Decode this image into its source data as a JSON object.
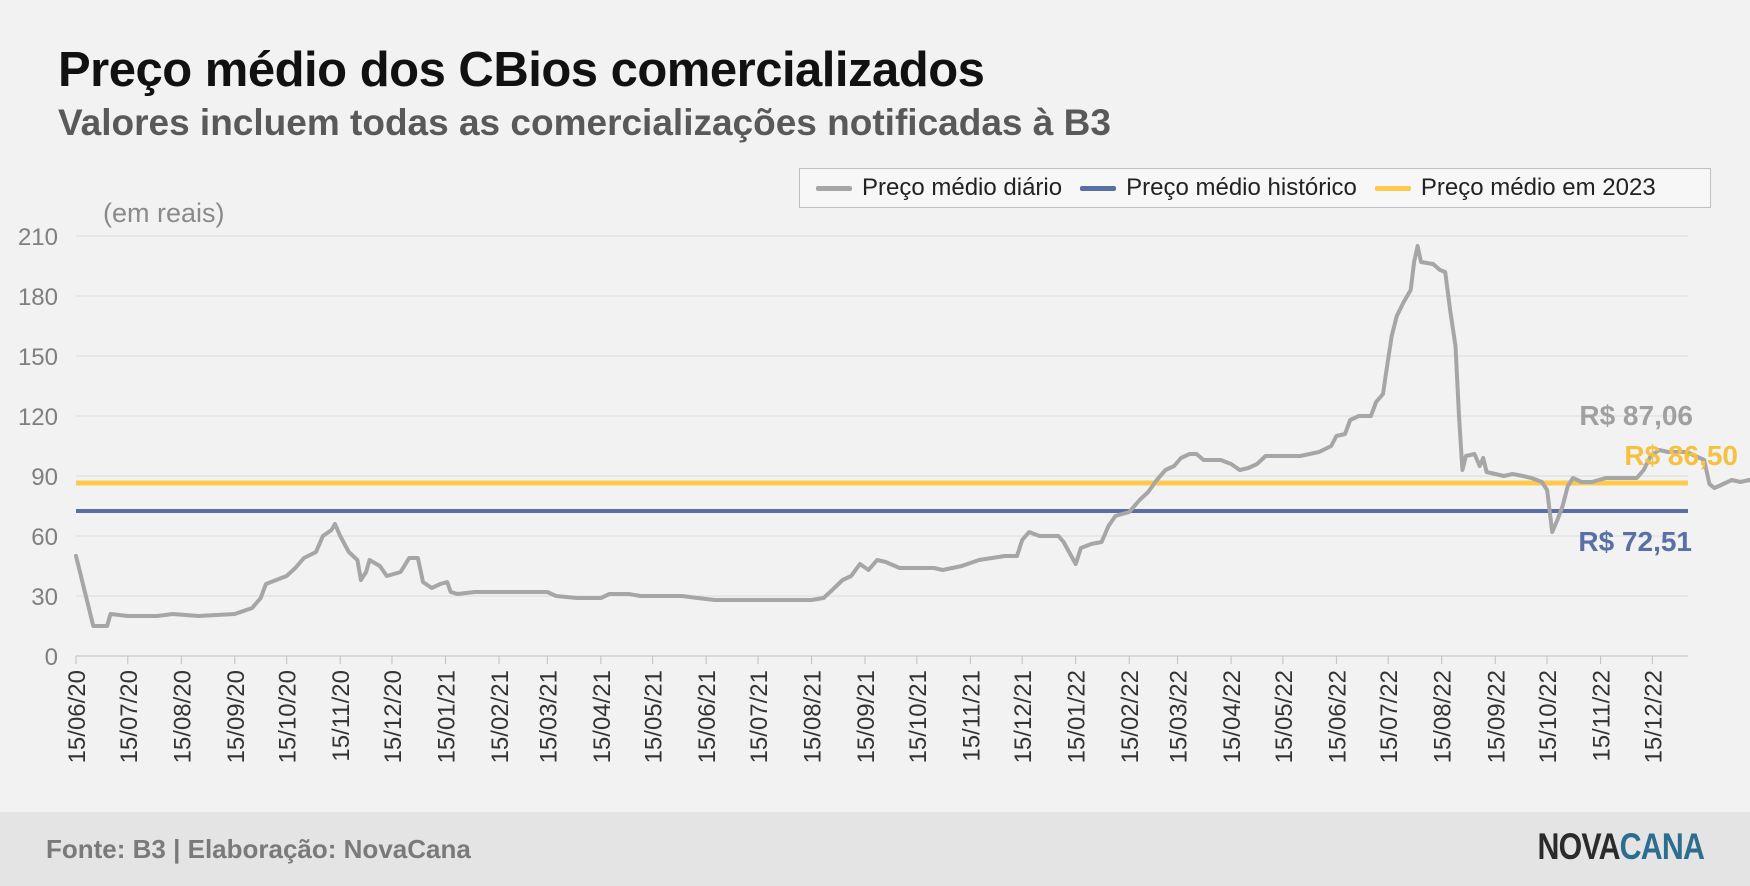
{
  "header": {
    "title": "Preço médio dos CBios comercializados",
    "subtitle": "Valores incluem todas as comercializações notificadas à B3"
  },
  "footer": {
    "source": "Fonte: B3 | Elaboração: NovaCana",
    "logo_part1": "NOVA",
    "logo_part2": "CANA"
  },
  "colors": {
    "daily": "#a6a6a6",
    "historic": "#5a6fa3",
    "year2023": "#ffc94d",
    "grid": "#dcdcdc",
    "axis_text": "#7f7f7f"
  },
  "chart_data": {
    "type": "line",
    "unit_label": "(em reais)",
    "ylim": [
      0,
      210
    ],
    "yticks": [
      0,
      30,
      60,
      90,
      120,
      150,
      180,
      210
    ],
    "x_start": "15/06/20",
    "x_end": "31/12/22",
    "x_tick_labels": [
      "15/06/20",
      "15/07/20",
      "15/08/20",
      "15/09/20",
      "15/10/20",
      "15/11/20",
      "15/12/20",
      "15/01/21",
      "15/02/21",
      "15/03/21",
      "15/04/21",
      "15/05/21",
      "15/06/21",
      "15/07/21",
      "15/08/21",
      "15/09/21",
      "15/10/21",
      "15/11/21",
      "15/12/21",
      "15/01/22",
      "15/02/22",
      "15/03/22",
      "15/04/22",
      "15/05/22",
      "15/06/22",
      "15/07/22",
      "15/08/22",
      "15/09/22",
      "15/10/22",
      "15/11/22",
      "15/12/22"
    ],
    "legend": [
      "Preço médio diário",
      "Preço médio histórico",
      "Preço médio em 2023"
    ],
    "grid": true,
    "legend_position": "top-right",
    "series": [
      {
        "name": "Preço médio diário",
        "points": [
          [
            "15/06/20",
            50
          ],
          [
            "25/06/20",
            15
          ],
          [
            "03/07/20",
            15
          ],
          [
            "05/07/20",
            21
          ],
          [
            "15/07/20",
            20
          ],
          [
            "01/08/20",
            20
          ],
          [
            "10/08/20",
            21
          ],
          [
            "25/08/20",
            20
          ],
          [
            "15/09/20",
            21
          ],
          [
            "25/09/20",
            24
          ],
          [
            "30/09/20",
            29
          ],
          [
            "03/10/20",
            36
          ],
          [
            "15/10/20",
            40
          ],
          [
            "20/10/20",
            44
          ],
          [
            "25/10/20",
            49
          ],
          [
            "01/11/20",
            52
          ],
          [
            "05/11/20",
            60
          ],
          [
            "10/11/20",
            63
          ],
          [
            "12/11/20",
            66
          ],
          [
            "15/11/20",
            60
          ],
          [
            "20/11/20",
            52
          ],
          [
            "25/11/20",
            48
          ],
          [
            "27/11/20",
            38
          ],
          [
            "30/11/20",
            42
          ],
          [
            "02/12/20",
            48
          ],
          [
            "08/12/20",
            45
          ],
          [
            "12/12/20",
            40
          ],
          [
            "20/12/20",
            42
          ],
          [
            "25/12/20",
            49
          ],
          [
            "30/12/20",
            49
          ],
          [
            "02/01/21",
            37
          ],
          [
            "07/01/21",
            34
          ],
          [
            "12/01/21",
            36
          ],
          [
            "16/01/21",
            37
          ],
          [
            "18/01/21",
            32
          ],
          [
            "22/01/21",
            31
          ],
          [
            "01/02/21",
            32
          ],
          [
            "15/03/21",
            32
          ],
          [
            "20/03/21",
            30
          ],
          [
            "01/04/21",
            29
          ],
          [
            "15/04/21",
            29
          ],
          [
            "20/04/21",
            31
          ],
          [
            "01/05/21",
            31
          ],
          [
            "08/05/21",
            30
          ],
          [
            "01/06/21",
            30
          ],
          [
            "10/06/21",
            29
          ],
          [
            "20/06/21",
            28
          ],
          [
            "15/08/21",
            28
          ],
          [
            "22/08/21",
            29
          ],
          [
            "27/08/21",
            33
          ],
          [
            "02/09/21",
            38
          ],
          [
            "07/09/21",
            40
          ],
          [
            "12/09/21",
            46
          ],
          [
            "17/09/21",
            43
          ],
          [
            "22/09/21",
            48
          ],
          [
            "27/09/21",
            47
          ],
          [
            "05/10/21",
            44
          ],
          [
            "25/10/21",
            44
          ],
          [
            "30/10/21",
            43
          ],
          [
            "10/11/21",
            45
          ],
          [
            "20/11/21",
            48
          ],
          [
            "05/12/21",
            50
          ],
          [
            "12/12/21",
            50
          ],
          [
            "15/12/21",
            58
          ],
          [
            "19/12/21",
            62
          ],
          [
            "25/12/21",
            60
          ],
          [
            "05/01/22",
            60
          ],
          [
            "08/01/22",
            57
          ],
          [
            "15/01/22",
            46
          ],
          [
            "18/01/22",
            54
          ],
          [
            "24/01/22",
            56
          ],
          [
            "30/01/22",
            57
          ],
          [
            "03/02/22",
            65
          ],
          [
            "07/02/22",
            70
          ],
          [
            "15/02/22",
            72
          ],
          [
            "21/02/22",
            78
          ],
          [
            "26/02/22",
            82
          ],
          [
            "03/03/22",
            88
          ],
          [
            "08/03/22",
            93
          ],
          [
            "13/03/22",
            95
          ],
          [
            "17/03/22",
            99
          ],
          [
            "22/03/22",
            101
          ],
          [
            "26/03/22",
            101
          ],
          [
            "30/03/22",
            98
          ],
          [
            "09/04/22",
            98
          ],
          [
            "15/04/22",
            96
          ],
          [
            "20/04/22",
            93
          ],
          [
            "25/04/22",
            94
          ],
          [
            "30/04/22",
            96
          ],
          [
            "05/05/22",
            100
          ],
          [
            "25/05/22",
            100
          ],
          [
            "05/06/22",
            102
          ],
          [
            "12/06/22",
            105
          ],
          [
            "15/06/22",
            110
          ],
          [
            "20/06/22",
            111
          ],
          [
            "23/06/22",
            118
          ],
          [
            "28/06/22",
            120
          ],
          [
            "05/07/22",
            120
          ],
          [
            "08/07/22",
            127
          ],
          [
            "12/07/22",
            131
          ],
          [
            "14/07/22",
            143
          ],
          [
            "17/07/22",
            160
          ],
          [
            "20/07/22",
            170
          ],
          [
            "24/07/22",
            177
          ],
          [
            "28/07/22",
            183
          ],
          [
            "30/07/22",
            197
          ],
          [
            "01/08/22",
            205
          ],
          [
            "03/08/22",
            197
          ],
          [
            "10/08/22",
            196
          ],
          [
            "14/08/22",
            193
          ],
          [
            "17/08/22",
            192
          ],
          [
            "20/08/22",
            172
          ],
          [
            "23/08/22",
            155
          ],
          [
            "25/08/22",
            120
          ],
          [
            "27/08/22",
            93
          ],
          [
            "29/08/22",
            100
          ],
          [
            "03/09/22",
            101
          ],
          [
            "06/09/22",
            95
          ],
          [
            "08/09/22",
            99
          ],
          [
            "10/09/22",
            92
          ],
          [
            "15/09/22",
            91
          ],
          [
            "20/09/22",
            90
          ],
          [
            "25/09/22",
            91
          ],
          [
            "01/10/22",
            90
          ],
          [
            "06/10/22",
            89
          ],
          [
            "12/10/22",
            87
          ],
          [
            "15/10/22",
            83
          ],
          [
            "18/10/22",
            62
          ],
          [
            "21/10/22",
            68
          ],
          [
            "24/10/22",
            75
          ],
          [
            "27/10/22",
            85
          ],
          [
            "30/10/22",
            89
          ],
          [
            "04/11/22",
            87
          ],
          [
            "10/11/22",
            87
          ],
          [
            "18/11/22",
            89
          ],
          [
            "25/11/22",
            89
          ],
          [
            "01/12/22",
            89
          ],
          [
            "06/12/22",
            89
          ],
          [
            "10/12/22",
            93
          ],
          [
            "14/12/22",
            100
          ],
          [
            "19/12/22",
            103
          ],
          [
            "24/12/22",
            102
          ],
          [
            "30/12/22",
            102
          ],
          [
            "04/01/23",
            102
          ],
          [
            "09/01/23",
            100
          ],
          [
            "14/01/23",
            98
          ],
          [
            "17/01/23",
            86
          ],
          [
            "20/01/23",
            84
          ],
          [
            "25/01/23",
            86
          ],
          [
            "30/01/23",
            88
          ],
          [
            "04/02/23",
            87
          ],
          [
            "09/02/23",
            88
          ],
          [
            "14/02/23",
            86
          ],
          [
            "18/02/23",
            87
          ],
          [
            "22/02/23",
            87
          ]
        ]
      },
      {
        "name": "Preço médio histórico",
        "value": 72.51,
        "label": "R$ 72,51"
      },
      {
        "name": "Preço médio em 2023",
        "value": 86.5,
        "label": "R$ 86,50"
      }
    ],
    "last_value_label": "R$ 87,06"
  }
}
